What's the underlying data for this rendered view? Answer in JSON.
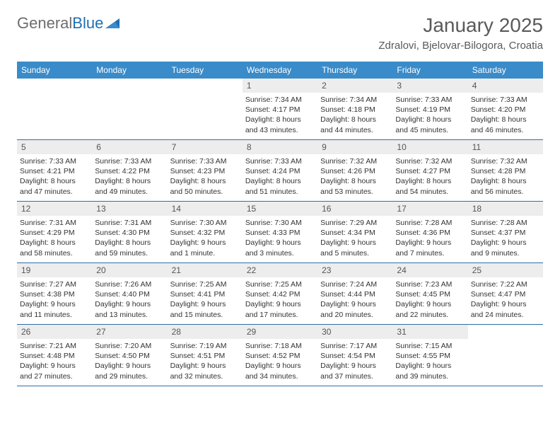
{
  "logo": {
    "text1": "General",
    "text2": "Blue"
  },
  "title": "January 2025",
  "location": "Zdralovi, Bjelovar-Bilogora, Croatia",
  "colors": {
    "header_bg": "#3a8bc9",
    "header_text": "#ffffff",
    "daynum_bg": "#ededed",
    "week_border": "#2d6fa3",
    "logo_gray": "#6d6d6d",
    "logo_blue": "#1f6fb2",
    "title_color": "#5a5a5a"
  },
  "weekdays": [
    "Sunday",
    "Monday",
    "Tuesday",
    "Wednesday",
    "Thursday",
    "Friday",
    "Saturday"
  ],
  "weeks": [
    [
      {
        "num": "",
        "lines": []
      },
      {
        "num": "",
        "lines": []
      },
      {
        "num": "",
        "lines": []
      },
      {
        "num": "1",
        "lines": [
          "Sunrise: 7:34 AM",
          "Sunset: 4:17 PM",
          "Daylight: 8 hours",
          "and 43 minutes."
        ]
      },
      {
        "num": "2",
        "lines": [
          "Sunrise: 7:34 AM",
          "Sunset: 4:18 PM",
          "Daylight: 8 hours",
          "and 44 minutes."
        ]
      },
      {
        "num": "3",
        "lines": [
          "Sunrise: 7:33 AM",
          "Sunset: 4:19 PM",
          "Daylight: 8 hours",
          "and 45 minutes."
        ]
      },
      {
        "num": "4",
        "lines": [
          "Sunrise: 7:33 AM",
          "Sunset: 4:20 PM",
          "Daylight: 8 hours",
          "and 46 minutes."
        ]
      }
    ],
    [
      {
        "num": "5",
        "lines": [
          "Sunrise: 7:33 AM",
          "Sunset: 4:21 PM",
          "Daylight: 8 hours",
          "and 47 minutes."
        ]
      },
      {
        "num": "6",
        "lines": [
          "Sunrise: 7:33 AM",
          "Sunset: 4:22 PM",
          "Daylight: 8 hours",
          "and 49 minutes."
        ]
      },
      {
        "num": "7",
        "lines": [
          "Sunrise: 7:33 AM",
          "Sunset: 4:23 PM",
          "Daylight: 8 hours",
          "and 50 minutes."
        ]
      },
      {
        "num": "8",
        "lines": [
          "Sunrise: 7:33 AM",
          "Sunset: 4:24 PM",
          "Daylight: 8 hours",
          "and 51 minutes."
        ]
      },
      {
        "num": "9",
        "lines": [
          "Sunrise: 7:32 AM",
          "Sunset: 4:26 PM",
          "Daylight: 8 hours",
          "and 53 minutes."
        ]
      },
      {
        "num": "10",
        "lines": [
          "Sunrise: 7:32 AM",
          "Sunset: 4:27 PM",
          "Daylight: 8 hours",
          "and 54 minutes."
        ]
      },
      {
        "num": "11",
        "lines": [
          "Sunrise: 7:32 AM",
          "Sunset: 4:28 PM",
          "Daylight: 8 hours",
          "and 56 minutes."
        ]
      }
    ],
    [
      {
        "num": "12",
        "lines": [
          "Sunrise: 7:31 AM",
          "Sunset: 4:29 PM",
          "Daylight: 8 hours",
          "and 58 minutes."
        ]
      },
      {
        "num": "13",
        "lines": [
          "Sunrise: 7:31 AM",
          "Sunset: 4:30 PM",
          "Daylight: 8 hours",
          "and 59 minutes."
        ]
      },
      {
        "num": "14",
        "lines": [
          "Sunrise: 7:30 AM",
          "Sunset: 4:32 PM",
          "Daylight: 9 hours",
          "and 1 minute."
        ]
      },
      {
        "num": "15",
        "lines": [
          "Sunrise: 7:30 AM",
          "Sunset: 4:33 PM",
          "Daylight: 9 hours",
          "and 3 minutes."
        ]
      },
      {
        "num": "16",
        "lines": [
          "Sunrise: 7:29 AM",
          "Sunset: 4:34 PM",
          "Daylight: 9 hours",
          "and 5 minutes."
        ]
      },
      {
        "num": "17",
        "lines": [
          "Sunrise: 7:28 AM",
          "Sunset: 4:36 PM",
          "Daylight: 9 hours",
          "and 7 minutes."
        ]
      },
      {
        "num": "18",
        "lines": [
          "Sunrise: 7:28 AM",
          "Sunset: 4:37 PM",
          "Daylight: 9 hours",
          "and 9 minutes."
        ]
      }
    ],
    [
      {
        "num": "19",
        "lines": [
          "Sunrise: 7:27 AM",
          "Sunset: 4:38 PM",
          "Daylight: 9 hours",
          "and 11 minutes."
        ]
      },
      {
        "num": "20",
        "lines": [
          "Sunrise: 7:26 AM",
          "Sunset: 4:40 PM",
          "Daylight: 9 hours",
          "and 13 minutes."
        ]
      },
      {
        "num": "21",
        "lines": [
          "Sunrise: 7:25 AM",
          "Sunset: 4:41 PM",
          "Daylight: 9 hours",
          "and 15 minutes."
        ]
      },
      {
        "num": "22",
        "lines": [
          "Sunrise: 7:25 AM",
          "Sunset: 4:42 PM",
          "Daylight: 9 hours",
          "and 17 minutes."
        ]
      },
      {
        "num": "23",
        "lines": [
          "Sunrise: 7:24 AM",
          "Sunset: 4:44 PM",
          "Daylight: 9 hours",
          "and 20 minutes."
        ]
      },
      {
        "num": "24",
        "lines": [
          "Sunrise: 7:23 AM",
          "Sunset: 4:45 PM",
          "Daylight: 9 hours",
          "and 22 minutes."
        ]
      },
      {
        "num": "25",
        "lines": [
          "Sunrise: 7:22 AM",
          "Sunset: 4:47 PM",
          "Daylight: 9 hours",
          "and 24 minutes."
        ]
      }
    ],
    [
      {
        "num": "26",
        "lines": [
          "Sunrise: 7:21 AM",
          "Sunset: 4:48 PM",
          "Daylight: 9 hours",
          "and 27 minutes."
        ]
      },
      {
        "num": "27",
        "lines": [
          "Sunrise: 7:20 AM",
          "Sunset: 4:50 PM",
          "Daylight: 9 hours",
          "and 29 minutes."
        ]
      },
      {
        "num": "28",
        "lines": [
          "Sunrise: 7:19 AM",
          "Sunset: 4:51 PM",
          "Daylight: 9 hours",
          "and 32 minutes."
        ]
      },
      {
        "num": "29",
        "lines": [
          "Sunrise: 7:18 AM",
          "Sunset: 4:52 PM",
          "Daylight: 9 hours",
          "and 34 minutes."
        ]
      },
      {
        "num": "30",
        "lines": [
          "Sunrise: 7:17 AM",
          "Sunset: 4:54 PM",
          "Daylight: 9 hours",
          "and 37 minutes."
        ]
      },
      {
        "num": "31",
        "lines": [
          "Sunrise: 7:15 AM",
          "Sunset: 4:55 PM",
          "Daylight: 9 hours",
          "and 39 minutes."
        ]
      },
      {
        "num": "",
        "lines": []
      }
    ]
  ]
}
